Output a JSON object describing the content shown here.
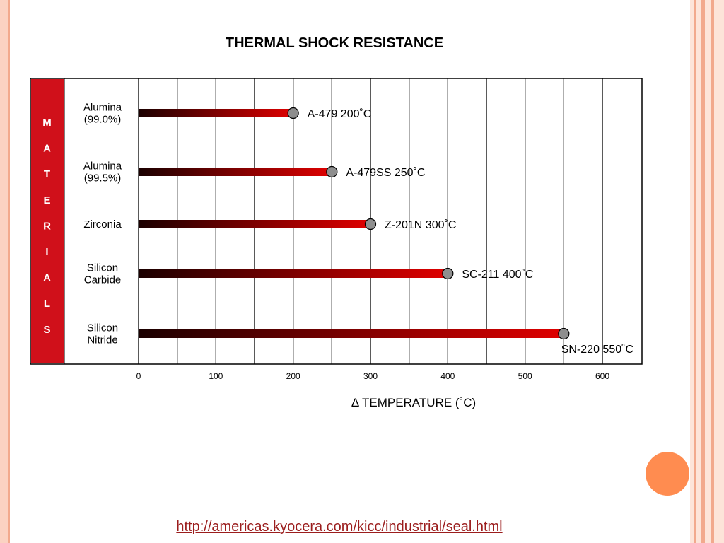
{
  "slide": {
    "title": "THERMAL SHOCK RESISTANCE",
    "link": "http://americas.kyocera.com/kicc/industrial/seal.html"
  },
  "colors": {
    "materials_band": "#d0101a",
    "bar_start": "#1a0000",
    "bar_end": "#e00000",
    "marker": "#8e8e8e",
    "accent_circle": "#ff8c50",
    "frame": "#f2a98d"
  },
  "chart_data": {
    "type": "bar",
    "orientation": "horizontal",
    "title": "",
    "xlabel": "Δ TEMPERATURE (˚C)",
    "ylabel": "MATERIALS",
    "xlim": [
      0,
      600
    ],
    "xticks": [
      0,
      100,
      200,
      300,
      400,
      500,
      600
    ],
    "grid": true,
    "categories": [
      {
        "name_lines": [
          "Alumina",
          "(99.0%)"
        ],
        "value": 200,
        "label": "A-479 200˚C"
      },
      {
        "name_lines": [
          "Alumina",
          "(99.5%)"
        ],
        "value": 250,
        "label": "A-479SS 250˚C"
      },
      {
        "name_lines": [
          "Zirconia"
        ],
        "value": 300,
        "label": "Z-201N 300˚C"
      },
      {
        "name_lines": [
          "Silicon",
          "Carbide"
        ],
        "value": 400,
        "label": "SC-211 400˚C"
      },
      {
        "name_lines": [
          "Silicon",
          "Nitride"
        ],
        "value": 550,
        "label": "SN-220 550˚C"
      }
    ]
  }
}
